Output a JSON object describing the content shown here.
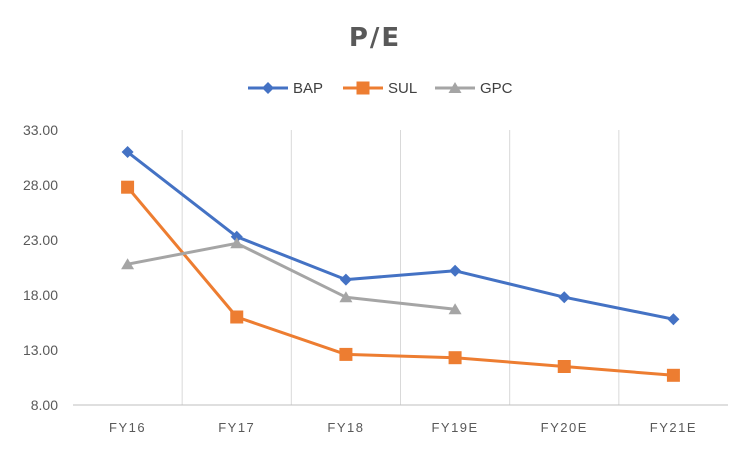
{
  "chart_data": {
    "type": "line",
    "title": "P/E",
    "categories": [
      "FY16",
      "FY17",
      "FY18",
      "FY19E",
      "FY20E",
      "FY21E"
    ],
    "series": [
      {
        "name": "BAP",
        "color": "#4472C4",
        "marker": "diamond",
        "values": [
          31.0,
          23.3,
          19.4,
          20.2,
          17.8,
          15.8
        ]
      },
      {
        "name": "SUL",
        "color": "#ED7D31",
        "marker": "square",
        "values": [
          27.8,
          16.0,
          12.6,
          12.3,
          11.5,
          10.7
        ]
      },
      {
        "name": "GPC",
        "color": "#A5A5A5",
        "marker": "triangle",
        "values": [
          20.8,
          22.7,
          17.8,
          16.7,
          null,
          null
        ]
      }
    ],
    "yticks": [
      "8.00",
      "13.00",
      "18.00",
      "23.00",
      "28.00",
      "33.00"
    ],
    "ylim": [
      8,
      33
    ],
    "legend_position": "top",
    "grid": "vertical"
  }
}
